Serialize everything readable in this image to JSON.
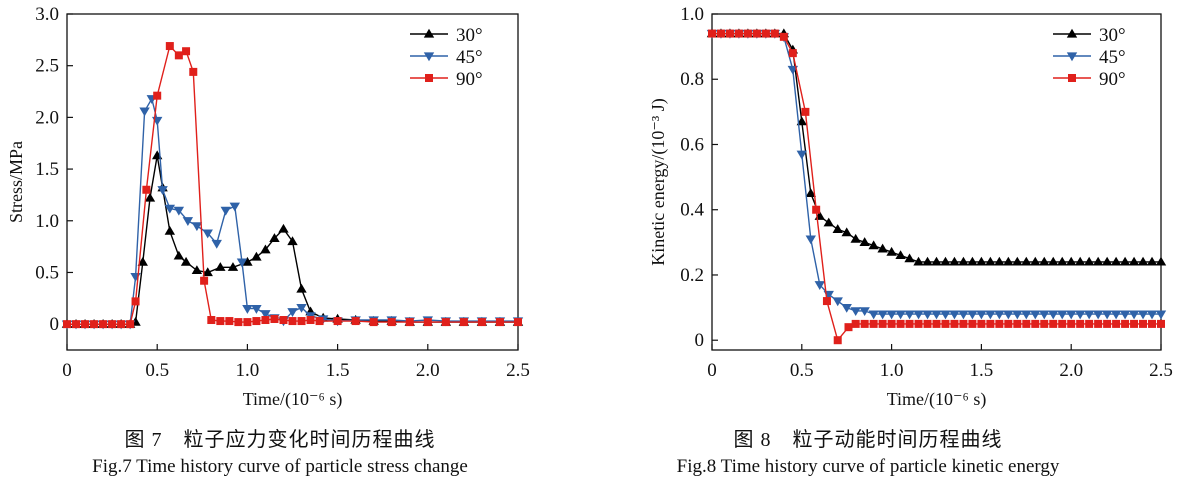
{
  "chart_data": [
    {
      "type": "line",
      "xlabel": "Time/(10⁻⁶ s)",
      "ylabel": "Stress/MPa",
      "xlim": [
        0,
        2.5
      ],
      "ylim": [
        -0.25,
        3.0
      ],
      "xticks": [
        "0",
        "0.5",
        "1.0",
        "1.5",
        "2.0",
        "2.5"
      ],
      "yticks": [
        "0",
        "0.5",
        "1.0",
        "1.5",
        "2.0",
        "2.5",
        "3.0"
      ],
      "legend_position": "top-right",
      "series": [
        {
          "name": "30°",
          "color": "#000000",
          "marker": "triangle-up",
          "x": [
            0,
            0.05,
            0.1,
            0.15,
            0.2,
            0.25,
            0.3,
            0.35,
            0.38,
            0.42,
            0.46,
            0.5,
            0.53,
            0.57,
            0.62,
            0.66,
            0.72,
            0.78,
            0.85,
            0.92,
            1.0,
            1.05,
            1.1,
            1.15,
            1.2,
            1.25,
            1.3,
            1.35,
            1.42,
            1.5,
            1.6,
            1.7,
            1.8,
            1.9,
            2.0,
            2.1,
            2.2,
            2.3,
            2.4,
            2.5
          ],
          "y": [
            0,
            0,
            0,
            0,
            0,
            0,
            0,
            0,
            0.02,
            0.6,
            1.22,
            1.63,
            1.32,
            0.9,
            0.66,
            0.6,
            0.52,
            0.5,
            0.55,
            0.55,
            0.6,
            0.65,
            0.72,
            0.83,
            0.92,
            0.8,
            0.34,
            0.12,
            0.06,
            0.05,
            0.04,
            0.03,
            0.03,
            0.02,
            0.02,
            0.02,
            0.02,
            0.02,
            0.02,
            0.02
          ]
        },
        {
          "name": "45°",
          "color": "#2f62a8",
          "marker": "triangle-down",
          "x": [
            0,
            0.05,
            0.1,
            0.15,
            0.2,
            0.25,
            0.3,
            0.35,
            0.38,
            0.43,
            0.47,
            0.5,
            0.53,
            0.57,
            0.62,
            0.67,
            0.72,
            0.78,
            0.83,
            0.88,
            0.93,
            0.97,
            1.0,
            1.05,
            1.1,
            1.15,
            1.2,
            1.25,
            1.3,
            1.35,
            1.42,
            1.5,
            1.6,
            1.7,
            1.8,
            1.9,
            2.0,
            2.1,
            2.2,
            2.3,
            2.4,
            2.5
          ],
          "y": [
            0,
            0,
            0,
            0,
            0,
            0,
            0,
            0,
            0.46,
            2.06,
            2.18,
            1.97,
            1.3,
            1.12,
            1.1,
            1.0,
            0.95,
            0.88,
            0.78,
            1.1,
            1.14,
            0.6,
            0.15,
            0.15,
            0.1,
            0.06,
            0.03,
            0.12,
            0.16,
            0.08,
            0.05,
            0.03,
            0.04,
            0.04,
            0.04,
            0.03,
            0.04,
            0.03,
            0.03,
            0.03,
            0.03,
            0.03
          ]
        },
        {
          "name": "90°",
          "color": "#e0201b",
          "marker": "square",
          "x": [
            0,
            0.05,
            0.1,
            0.15,
            0.2,
            0.25,
            0.3,
            0.35,
            0.38,
            0.44,
            0.5,
            0.57,
            0.62,
            0.66,
            0.7,
            0.76,
            0.8,
            0.85,
            0.9,
            0.95,
            1.0,
            1.05,
            1.1,
            1.15,
            1.2,
            1.25,
            1.3,
            1.35,
            1.4,
            1.5,
            1.6,
            1.7,
            1.8,
            1.9,
            2.0,
            2.1,
            2.2,
            2.3,
            2.4,
            2.5
          ],
          "y": [
            0,
            0,
            0,
            0,
            0,
            0,
            0,
            0,
            0.22,
            1.3,
            2.21,
            2.69,
            2.6,
            2.64,
            2.44,
            0.42,
            0.04,
            0.03,
            0.03,
            0.02,
            0.02,
            0.03,
            0.04,
            0.05,
            0.04,
            0.03,
            0.03,
            0.04,
            0.03,
            0.03,
            0.03,
            0.02,
            0.02,
            0.02,
            0.02,
            0.02,
            0.02,
            0.02,
            0.02,
            0.02
          ]
        }
      ]
    },
    {
      "type": "line",
      "xlabel": "Time/(10⁻⁶ s)",
      "ylabel": "Kinetic energy/(10⁻³ J)",
      "xlim": [
        0,
        2.5
      ],
      "ylim": [
        -0.03,
        1.0
      ],
      "xticks": [
        "0",
        "0.5",
        "1.0",
        "1.5",
        "2.0",
        "2.5"
      ],
      "yticks": [
        "0",
        "0.2",
        "0.4",
        "0.6",
        "0.8",
        "1.0"
      ],
      "legend_position": "top-right",
      "series": [
        {
          "name": "30°",
          "color": "#000000",
          "marker": "triangle-up",
          "x": [
            0,
            0.05,
            0.1,
            0.15,
            0.2,
            0.25,
            0.3,
            0.35,
            0.4,
            0.45,
            0.5,
            0.55,
            0.6,
            0.65,
            0.7,
            0.75,
            0.8,
            0.85,
            0.9,
            0.95,
            1.0,
            1.05,
            1.1,
            1.15,
            1.2,
            1.25,
            1.3,
            1.35,
            1.4,
            1.45,
            1.5,
            1.55,
            1.6,
            1.65,
            1.7,
            1.75,
            1.8,
            1.85,
            1.9,
            1.95,
            2.0,
            2.05,
            2.1,
            2.15,
            2.2,
            2.25,
            2.3,
            2.35,
            2.4,
            2.45,
            2.5
          ],
          "y": [
            0.94,
            0.94,
            0.94,
            0.94,
            0.94,
            0.94,
            0.94,
            0.94,
            0.94,
            0.89,
            0.67,
            0.45,
            0.38,
            0.36,
            0.34,
            0.33,
            0.31,
            0.3,
            0.29,
            0.28,
            0.27,
            0.26,
            0.25,
            0.24,
            0.24,
            0.24,
            0.24,
            0.24,
            0.24,
            0.24,
            0.24,
            0.24,
            0.24,
            0.24,
            0.24,
            0.24,
            0.24,
            0.24,
            0.24,
            0.24,
            0.24,
            0.24,
            0.24,
            0.24,
            0.24,
            0.24,
            0.24,
            0.24,
            0.24,
            0.24,
            0.24
          ]
        },
        {
          "name": "45°",
          "color": "#2f62a8",
          "marker": "triangle-down",
          "x": [
            0,
            0.05,
            0.1,
            0.15,
            0.2,
            0.25,
            0.3,
            0.35,
            0.4,
            0.45,
            0.5,
            0.55,
            0.6,
            0.65,
            0.7,
            0.75,
            0.8,
            0.85,
            0.9,
            0.95,
            1.0,
            1.05,
            1.1,
            1.15,
            1.2,
            1.25,
            1.3,
            1.35,
            1.4,
            1.45,
            1.5,
            1.55,
            1.6,
            1.65,
            1.7,
            1.75,
            1.8,
            1.85,
            1.9,
            1.95,
            2.0,
            2.05,
            2.1,
            2.15,
            2.2,
            2.25,
            2.3,
            2.35,
            2.4,
            2.45,
            2.5
          ],
          "y": [
            0.94,
            0.94,
            0.94,
            0.94,
            0.94,
            0.94,
            0.94,
            0.94,
            0.93,
            0.83,
            0.57,
            0.31,
            0.17,
            0.14,
            0.12,
            0.1,
            0.09,
            0.09,
            0.08,
            0.08,
            0.08,
            0.08,
            0.08,
            0.08,
            0.08,
            0.08,
            0.08,
            0.08,
            0.08,
            0.08,
            0.08,
            0.08,
            0.08,
            0.08,
            0.08,
            0.08,
            0.08,
            0.08,
            0.08,
            0.08,
            0.08,
            0.08,
            0.08,
            0.08,
            0.08,
            0.08,
            0.08,
            0.08,
            0.08,
            0.08,
            0.08
          ]
        },
        {
          "name": "90°",
          "color": "#e0201b",
          "marker": "square",
          "x": [
            0,
            0.05,
            0.1,
            0.15,
            0.2,
            0.25,
            0.3,
            0.35,
            0.4,
            0.45,
            0.52,
            0.58,
            0.64,
            0.7,
            0.76,
            0.8,
            0.85,
            0.9,
            0.95,
            1.0,
            1.05,
            1.1,
            1.15,
            1.2,
            1.25,
            1.3,
            1.35,
            1.4,
            1.45,
            1.5,
            1.55,
            1.6,
            1.65,
            1.7,
            1.75,
            1.8,
            1.85,
            1.9,
            1.95,
            2.0,
            2.05,
            2.1,
            2.15,
            2.2,
            2.25,
            2.3,
            2.35,
            2.4,
            2.45,
            2.5
          ],
          "y": [
            0.94,
            0.94,
            0.94,
            0.94,
            0.94,
            0.94,
            0.94,
            0.94,
            0.93,
            0.88,
            0.7,
            0.4,
            0.12,
            0.0,
            0.04,
            0.05,
            0.05,
            0.05,
            0.05,
            0.05,
            0.05,
            0.05,
            0.05,
            0.05,
            0.05,
            0.05,
            0.05,
            0.05,
            0.05,
            0.05,
            0.05,
            0.05,
            0.05,
            0.05,
            0.05,
            0.05,
            0.05,
            0.05,
            0.05,
            0.05,
            0.05,
            0.05,
            0.05,
            0.05,
            0.05,
            0.05,
            0.05,
            0.05,
            0.05,
            0.05
          ]
        }
      ]
    }
  ],
  "captions": {
    "left": {
      "cn": "图 7　粒子应力变化时间历程曲线",
      "en": "Fig.7 Time history curve of particle stress change"
    },
    "right": {
      "cn": "图 8　粒子动能时间历程曲线",
      "en": "Fig.8 Time history curve of particle kinetic energy"
    }
  }
}
